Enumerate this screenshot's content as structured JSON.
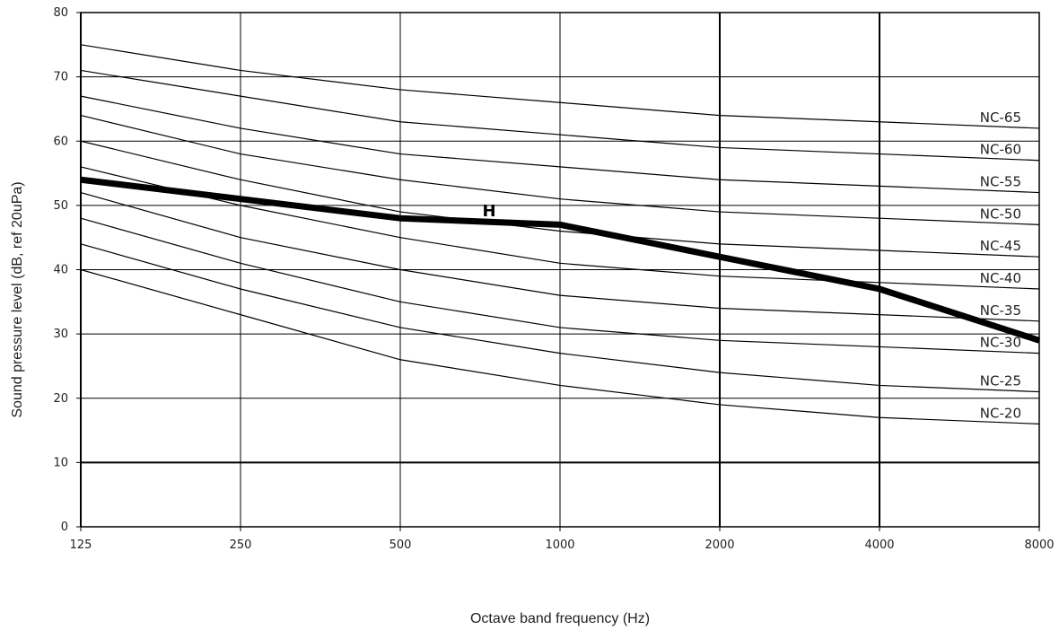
{
  "chart_data": {
    "type": "line",
    "xlabel": "Octave band frequency (Hz)",
    "ylabel": "Sound pressure level (dB, ref 20uPa)",
    "x": [
      125,
      250,
      500,
      1000,
      2000,
      4000,
      8000
    ],
    "x_tick_labels": [
      "125",
      "250",
      "500",
      "1000",
      "2000",
      "4000",
      "8000"
    ],
    "x_scale": "log",
    "ylim": [
      0,
      80
    ],
    "y_ticks": [
      0,
      10,
      20,
      30,
      40,
      50,
      60,
      70,
      80
    ],
    "grid": true,
    "series": [
      {
        "name": "NC-65",
        "values": [
          75,
          71,
          68,
          66,
          64,
          63,
          62
        ]
      },
      {
        "name": "NC-60",
        "values": [
          71,
          67,
          63,
          61,
          59,
          58,
          57
        ]
      },
      {
        "name": "NC-55",
        "values": [
          67,
          62,
          58,
          56,
          54,
          53,
          52
        ]
      },
      {
        "name": "NC-50",
        "values": [
          64,
          58,
          54,
          51,
          49,
          48,
          47
        ]
      },
      {
        "name": "NC-45",
        "values": [
          60,
          54,
          49,
          46,
          44,
          43,
          42
        ]
      },
      {
        "name": "NC-40",
        "values": [
          56,
          50,
          45,
          41,
          39,
          38,
          37
        ]
      },
      {
        "name": "NC-35",
        "values": [
          52,
          45,
          40,
          36,
          34,
          33,
          32
        ]
      },
      {
        "name": "NC-30",
        "values": [
          48,
          41,
          35,
          31,
          29,
          28,
          27
        ]
      },
      {
        "name": "NC-25",
        "values": [
          44,
          37,
          31,
          27,
          24,
          22,
          21
        ]
      },
      {
        "name": "NC-20",
        "values": [
          40,
          33,
          26,
          22,
          19,
          17,
          16
        ]
      }
    ],
    "measured": {
      "name": "H",
      "x": [
        125,
        250,
        500,
        1000,
        2000,
        4000,
        8000
      ],
      "values": [
        54,
        51,
        48,
        47,
        42,
        37,
        29
      ]
    }
  }
}
